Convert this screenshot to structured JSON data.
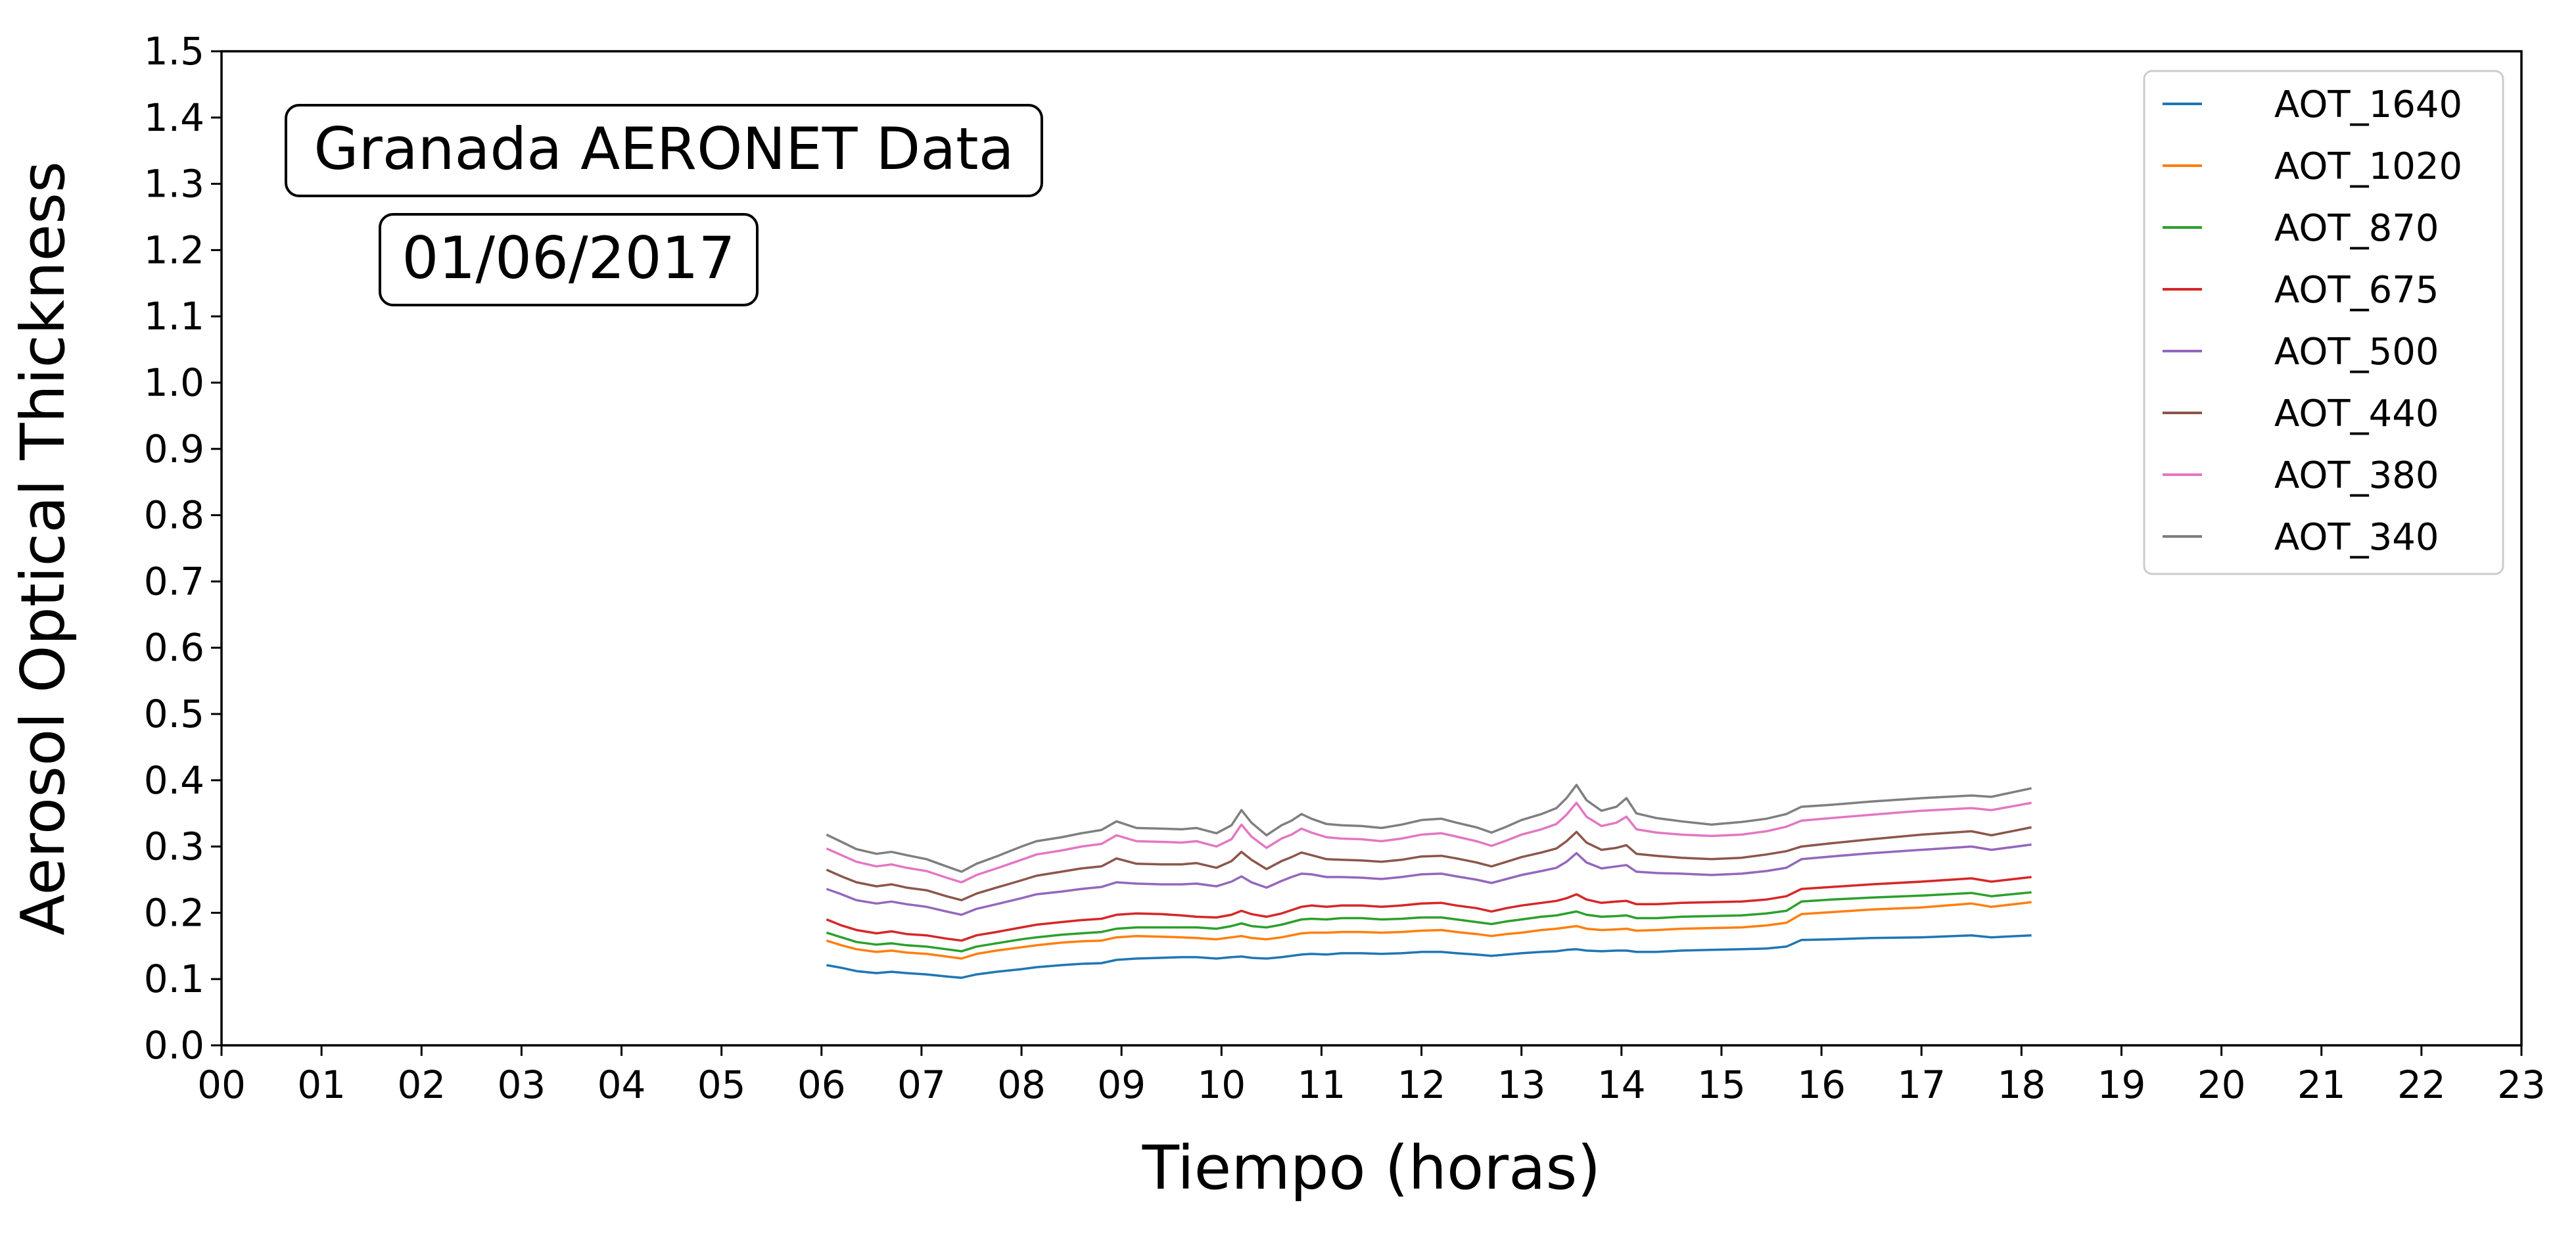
{
  "chart_data": {
    "type": "line",
    "xlabel": "Tiempo (horas)",
    "ylabel": "Aerosol Optical Thickness",
    "xlim": [
      0,
      23
    ],
    "ylim": [
      0,
      1.5
    ],
    "x_tick_labels": [
      "00",
      "01",
      "02",
      "03",
      "04",
      "05",
      "06",
      "07",
      "08",
      "09",
      "10",
      "11",
      "12",
      "13",
      "14",
      "15",
      "16",
      "17",
      "18",
      "19",
      "20",
      "21",
      "22",
      "23"
    ],
    "y_tick_labels": [
      "0.0",
      "0.1",
      "0.2",
      "0.3",
      "0.4",
      "0.5",
      "0.6",
      "0.7",
      "0.8",
      "0.9",
      "1.0",
      "1.1",
      "1.2",
      "1.3",
      "1.4",
      "1.5"
    ],
    "annotations": [
      "Granada AERONET Data",
      "01/06/2017"
    ],
    "legend_position": "top-right",
    "grid": false,
    "x": [
      6.05,
      6.2,
      6.35,
      6.55,
      6.7,
      6.85,
      7.05,
      7.25,
      7.4,
      7.55,
      7.75,
      8.0,
      8.15,
      8.4,
      8.6,
      8.8,
      8.95,
      9.15,
      9.4,
      9.6,
      9.75,
      9.95,
      10.1,
      10.2,
      10.3,
      10.45,
      10.6,
      10.7,
      10.8,
      10.9,
      11.05,
      11.2,
      11.4,
      11.6,
      11.8,
      12.0,
      12.2,
      12.35,
      12.55,
      12.7,
      12.85,
      13.0,
      13.2,
      13.35,
      13.45,
      13.55,
      13.65,
      13.8,
      13.95,
      14.05,
      14.15,
      14.35,
      14.6,
      14.9,
      15.2,
      15.45,
      15.65,
      15.8,
      16.1,
      16.5,
      17.0,
      17.5,
      17.7,
      18.1
    ],
    "series": [
      {
        "name": "AOT_1640",
        "color": "#1f77b4",
        "values": [
          0.121,
          0.117,
          0.112,
          0.109,
          0.111,
          0.109,
          0.107,
          0.104,
          0.102,
          0.107,
          0.111,
          0.115,
          0.118,
          0.121,
          0.123,
          0.124,
          0.129,
          0.131,
          0.132,
          0.133,
          0.133,
          0.131,
          0.133,
          0.134,
          0.132,
          0.131,
          0.133,
          0.135,
          0.137,
          0.138,
          0.137,
          0.139,
          0.139,
          0.138,
          0.139,
          0.141,
          0.141,
          0.139,
          0.137,
          0.135,
          0.137,
          0.139,
          0.141,
          0.142,
          0.144,
          0.145,
          0.143,
          0.142,
          0.143,
          0.143,
          0.141,
          0.141,
          0.143,
          0.144,
          0.145,
          0.146,
          0.149,
          0.159,
          0.16,
          0.162,
          0.163,
          0.166,
          0.163,
          0.166
        ]
      },
      {
        "name": "AOT_1020",
        "color": "#ff7f0e",
        "values": [
          0.158,
          0.151,
          0.145,
          0.141,
          0.143,
          0.14,
          0.138,
          0.134,
          0.131,
          0.138,
          0.143,
          0.148,
          0.151,
          0.155,
          0.157,
          0.158,
          0.163,
          0.165,
          0.164,
          0.163,
          0.162,
          0.16,
          0.163,
          0.165,
          0.162,
          0.16,
          0.163,
          0.166,
          0.169,
          0.17,
          0.17,
          0.171,
          0.171,
          0.17,
          0.171,
          0.173,
          0.174,
          0.171,
          0.168,
          0.165,
          0.168,
          0.17,
          0.174,
          0.176,
          0.178,
          0.18,
          0.176,
          0.174,
          0.175,
          0.176,
          0.173,
          0.174,
          0.176,
          0.177,
          0.178,
          0.181,
          0.185,
          0.198,
          0.201,
          0.205,
          0.208,
          0.214,
          0.209,
          0.216
        ]
      },
      {
        "name": "AOT_870",
        "color": "#2ca02c",
        "values": [
          0.17,
          0.163,
          0.156,
          0.152,
          0.154,
          0.151,
          0.149,
          0.145,
          0.142,
          0.149,
          0.154,
          0.16,
          0.163,
          0.167,
          0.169,
          0.171,
          0.176,
          0.178,
          0.178,
          0.178,
          0.178,
          0.176,
          0.18,
          0.184,
          0.18,
          0.178,
          0.182,
          0.186,
          0.19,
          0.191,
          0.19,
          0.192,
          0.192,
          0.19,
          0.191,
          0.193,
          0.193,
          0.19,
          0.186,
          0.183,
          0.187,
          0.19,
          0.194,
          0.196,
          0.199,
          0.202,
          0.197,
          0.194,
          0.195,
          0.196,
          0.192,
          0.192,
          0.194,
          0.195,
          0.196,
          0.199,
          0.203,
          0.217,
          0.22,
          0.223,
          0.226,
          0.23,
          0.225,
          0.231
        ]
      },
      {
        "name": "AOT_675",
        "color": "#d62728",
        "values": [
          0.19,
          0.181,
          0.174,
          0.169,
          0.172,
          0.168,
          0.166,
          0.161,
          0.158,
          0.166,
          0.171,
          0.178,
          0.182,
          0.186,
          0.189,
          0.191,
          0.197,
          0.199,
          0.198,
          0.196,
          0.194,
          0.193,
          0.197,
          0.203,
          0.198,
          0.194,
          0.199,
          0.204,
          0.209,
          0.211,
          0.209,
          0.211,
          0.211,
          0.209,
          0.211,
          0.214,
          0.215,
          0.211,
          0.207,
          0.202,
          0.207,
          0.211,
          0.215,
          0.218,
          0.222,
          0.228,
          0.22,
          0.215,
          0.217,
          0.218,
          0.213,
          0.213,
          0.215,
          0.216,
          0.217,
          0.22,
          0.225,
          0.236,
          0.239,
          0.243,
          0.247,
          0.252,
          0.247,
          0.254
        ]
      },
      {
        "name": "AOT_500",
        "color": "#9467bd",
        "values": [
          0.236,
          0.228,
          0.219,
          0.214,
          0.217,
          0.213,
          0.209,
          0.202,
          0.197,
          0.206,
          0.213,
          0.222,
          0.228,
          0.232,
          0.236,
          0.239,
          0.246,
          0.244,
          0.243,
          0.243,
          0.244,
          0.24,
          0.247,
          0.255,
          0.246,
          0.238,
          0.248,
          0.254,
          0.259,
          0.258,
          0.254,
          0.254,
          0.253,
          0.251,
          0.254,
          0.258,
          0.259,
          0.255,
          0.25,
          0.245,
          0.251,
          0.257,
          0.263,
          0.268,
          0.277,
          0.29,
          0.276,
          0.267,
          0.27,
          0.272,
          0.262,
          0.26,
          0.259,
          0.257,
          0.259,
          0.263,
          0.268,
          0.281,
          0.285,
          0.29,
          0.295,
          0.3,
          0.295,
          0.303
        ]
      },
      {
        "name": "AOT_440",
        "color": "#8c564b",
        "values": [
          0.265,
          0.255,
          0.246,
          0.24,
          0.243,
          0.238,
          0.234,
          0.225,
          0.219,
          0.229,
          0.238,
          0.249,
          0.256,
          0.262,
          0.267,
          0.27,
          0.282,
          0.274,
          0.273,
          0.273,
          0.275,
          0.268,
          0.278,
          0.292,
          0.28,
          0.266,
          0.278,
          0.284,
          0.291,
          0.287,
          0.281,
          0.28,
          0.279,
          0.277,
          0.28,
          0.285,
          0.286,
          0.282,
          0.276,
          0.27,
          0.277,
          0.284,
          0.291,
          0.297,
          0.308,
          0.322,
          0.306,
          0.295,
          0.298,
          0.302,
          0.289,
          0.286,
          0.283,
          0.281,
          0.283,
          0.288,
          0.293,
          0.3,
          0.305,
          0.311,
          0.318,
          0.323,
          0.317,
          0.329
        ]
      },
      {
        "name": "AOT_380",
        "color": "#e377c2",
        "values": [
          0.297,
          0.287,
          0.277,
          0.27,
          0.273,
          0.268,
          0.263,
          0.253,
          0.246,
          0.257,
          0.267,
          0.28,
          0.288,
          0.294,
          0.3,
          0.304,
          0.317,
          0.308,
          0.307,
          0.306,
          0.308,
          0.3,
          0.311,
          0.333,
          0.315,
          0.298,
          0.312,
          0.318,
          0.327,
          0.321,
          0.314,
          0.312,
          0.311,
          0.308,
          0.312,
          0.318,
          0.32,
          0.315,
          0.308,
          0.301,
          0.309,
          0.318,
          0.326,
          0.334,
          0.348,
          0.366,
          0.345,
          0.331,
          0.336,
          0.345,
          0.326,
          0.321,
          0.318,
          0.316,
          0.318,
          0.323,
          0.33,
          0.339,
          0.343,
          0.348,
          0.354,
          0.358,
          0.355,
          0.366
        ]
      },
      {
        "name": "AOT_340",
        "color": "#7f7f7f",
        "values": [
          0.318,
          0.307,
          0.296,
          0.289,
          0.292,
          0.287,
          0.281,
          0.27,
          0.262,
          0.274,
          0.285,
          0.3,
          0.308,
          0.314,
          0.32,
          0.325,
          0.338,
          0.328,
          0.327,
          0.326,
          0.328,
          0.32,
          0.332,
          0.355,
          0.336,
          0.317,
          0.332,
          0.339,
          0.349,
          0.342,
          0.334,
          0.332,
          0.331,
          0.328,
          0.333,
          0.34,
          0.342,
          0.336,
          0.329,
          0.321,
          0.33,
          0.34,
          0.349,
          0.358,
          0.373,
          0.393,
          0.37,
          0.354,
          0.36,
          0.373,
          0.35,
          0.343,
          0.338,
          0.333,
          0.337,
          0.342,
          0.349,
          0.36,
          0.363,
          0.368,
          0.373,
          0.377,
          0.375,
          0.388
        ]
      }
    ]
  }
}
